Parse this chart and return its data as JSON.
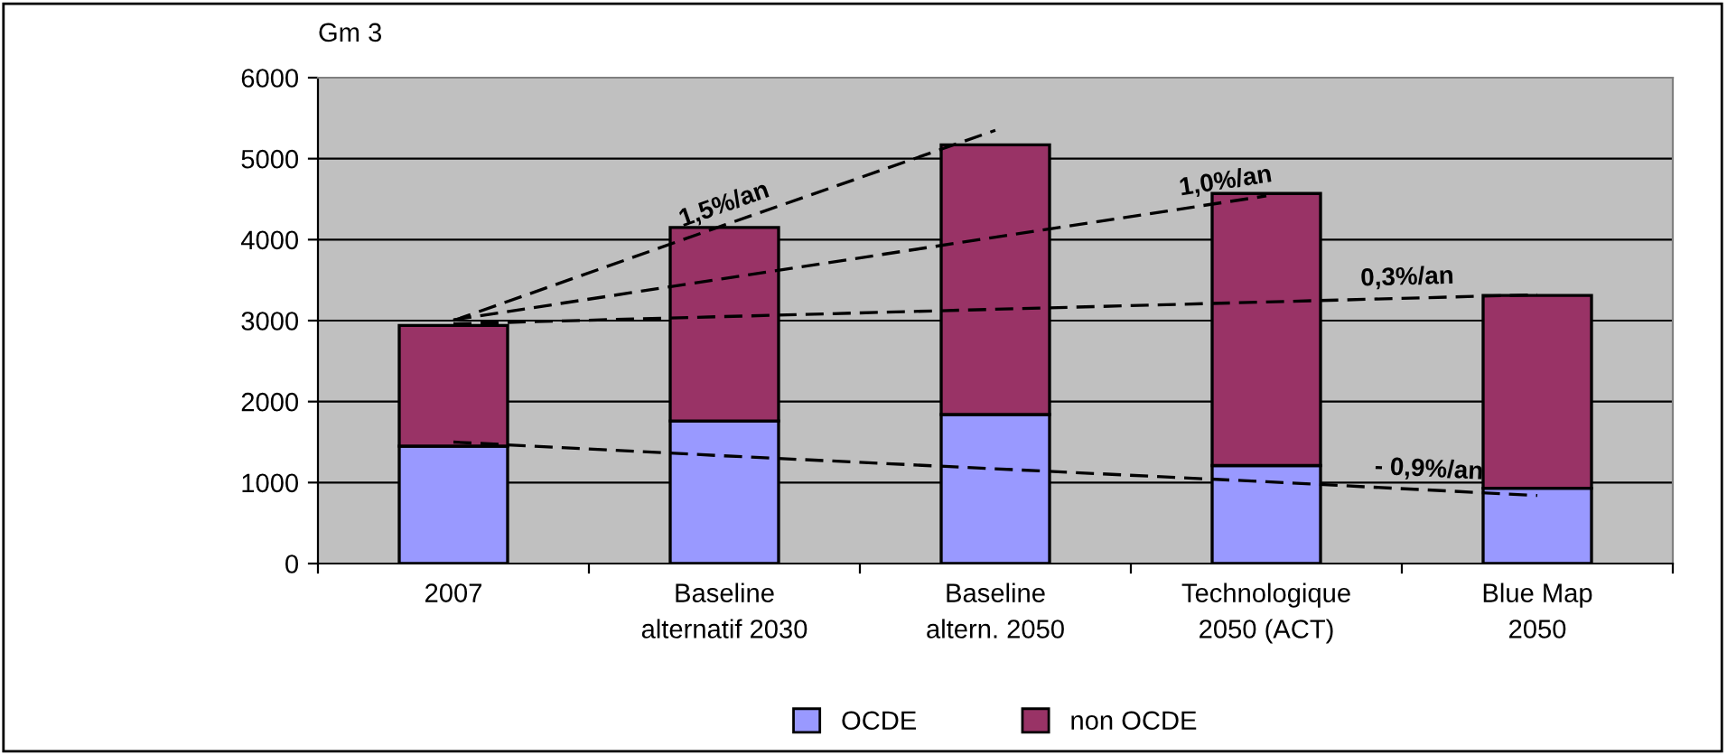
{
  "chart_data": {
    "type": "bar",
    "stacked": true,
    "ylabel": "Gm 3",
    "categories": [
      "2007",
      "Baseline\nalternatif 2030",
      "Baseline\naltern. 2050",
      "Technologique\n2050 (ACT)",
      "Blue Map\n2050"
    ],
    "ylim": [
      0,
      6000
    ],
    "yticks": [
      0,
      1000,
      2000,
      3000,
      4000,
      5000,
      6000
    ],
    "grid": "y",
    "legend": "bottom",
    "line_style": "dashed",
    "series": [
      {
        "name": "OCDE",
        "color": "#9999ff",
        "values": [
          1450,
          1760,
          1840,
          1210,
          930
        ]
      },
      {
        "name": "non OCDE",
        "color": "#993366",
        "values": [
          1490,
          2390,
          3330,
          3360,
          2380
        ]
      },
      {
        "name": "1,5%/an",
        "type": "line",
        "color": "#000000",
        "values": [
          3000,
          4180,
          5350,
          null,
          null
        ]
      },
      {
        "name": "1,0%/an",
        "type": "line",
        "color": "#000000",
        "values": [
          3010,
          3520,
          4030,
          4540,
          null
        ]
      },
      {
        "name": "0,3%/an",
        "type": "line",
        "color": "#000000",
        "values": [
          2960,
          3050,
          3140,
          3230,
          3320
        ]
      },
      {
        "name": "- 0,9%/an",
        "type": "line",
        "color": "#000000",
        "values": [
          1500,
          1330,
          1170,
          1010,
          840
        ]
      }
    ]
  }
}
